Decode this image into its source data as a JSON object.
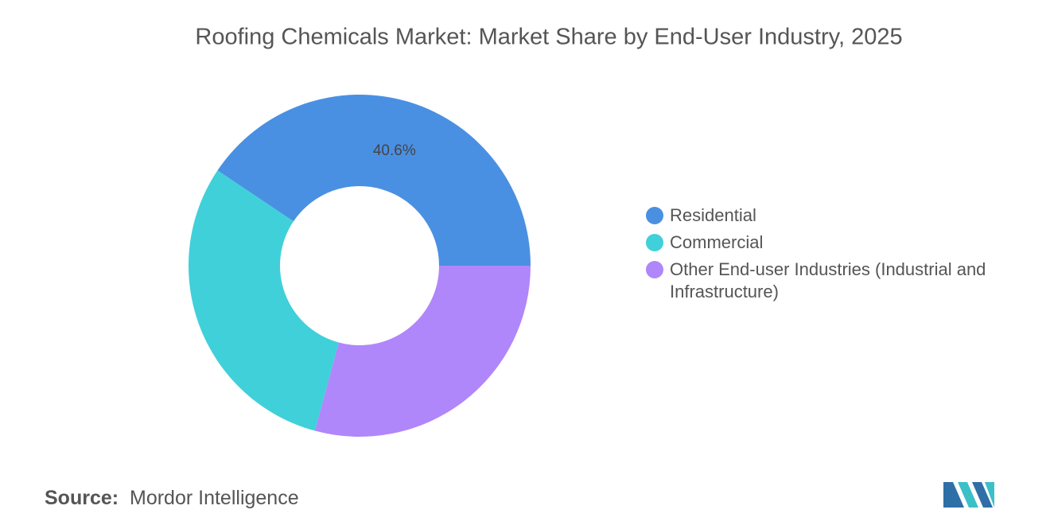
{
  "chart_data": {
    "type": "donut",
    "title": "Roofing Chemicals Market: Market Share by End-User Industry, 2025",
    "categories": [
      "Residential",
      "Commercial",
      "Other End-user Industries (Industrial and Infrastructure)"
    ],
    "values": [
      40.6,
      30.2,
      29.2
    ],
    "value_labels": [
      "40.6%",
      null,
      null
    ],
    "colors": [
      "#4a90e2",
      "#40d0da",
      "#b086fb"
    ],
    "legend": "right"
  },
  "source_label": "Source:",
  "source": "Mordor Intelligence"
}
